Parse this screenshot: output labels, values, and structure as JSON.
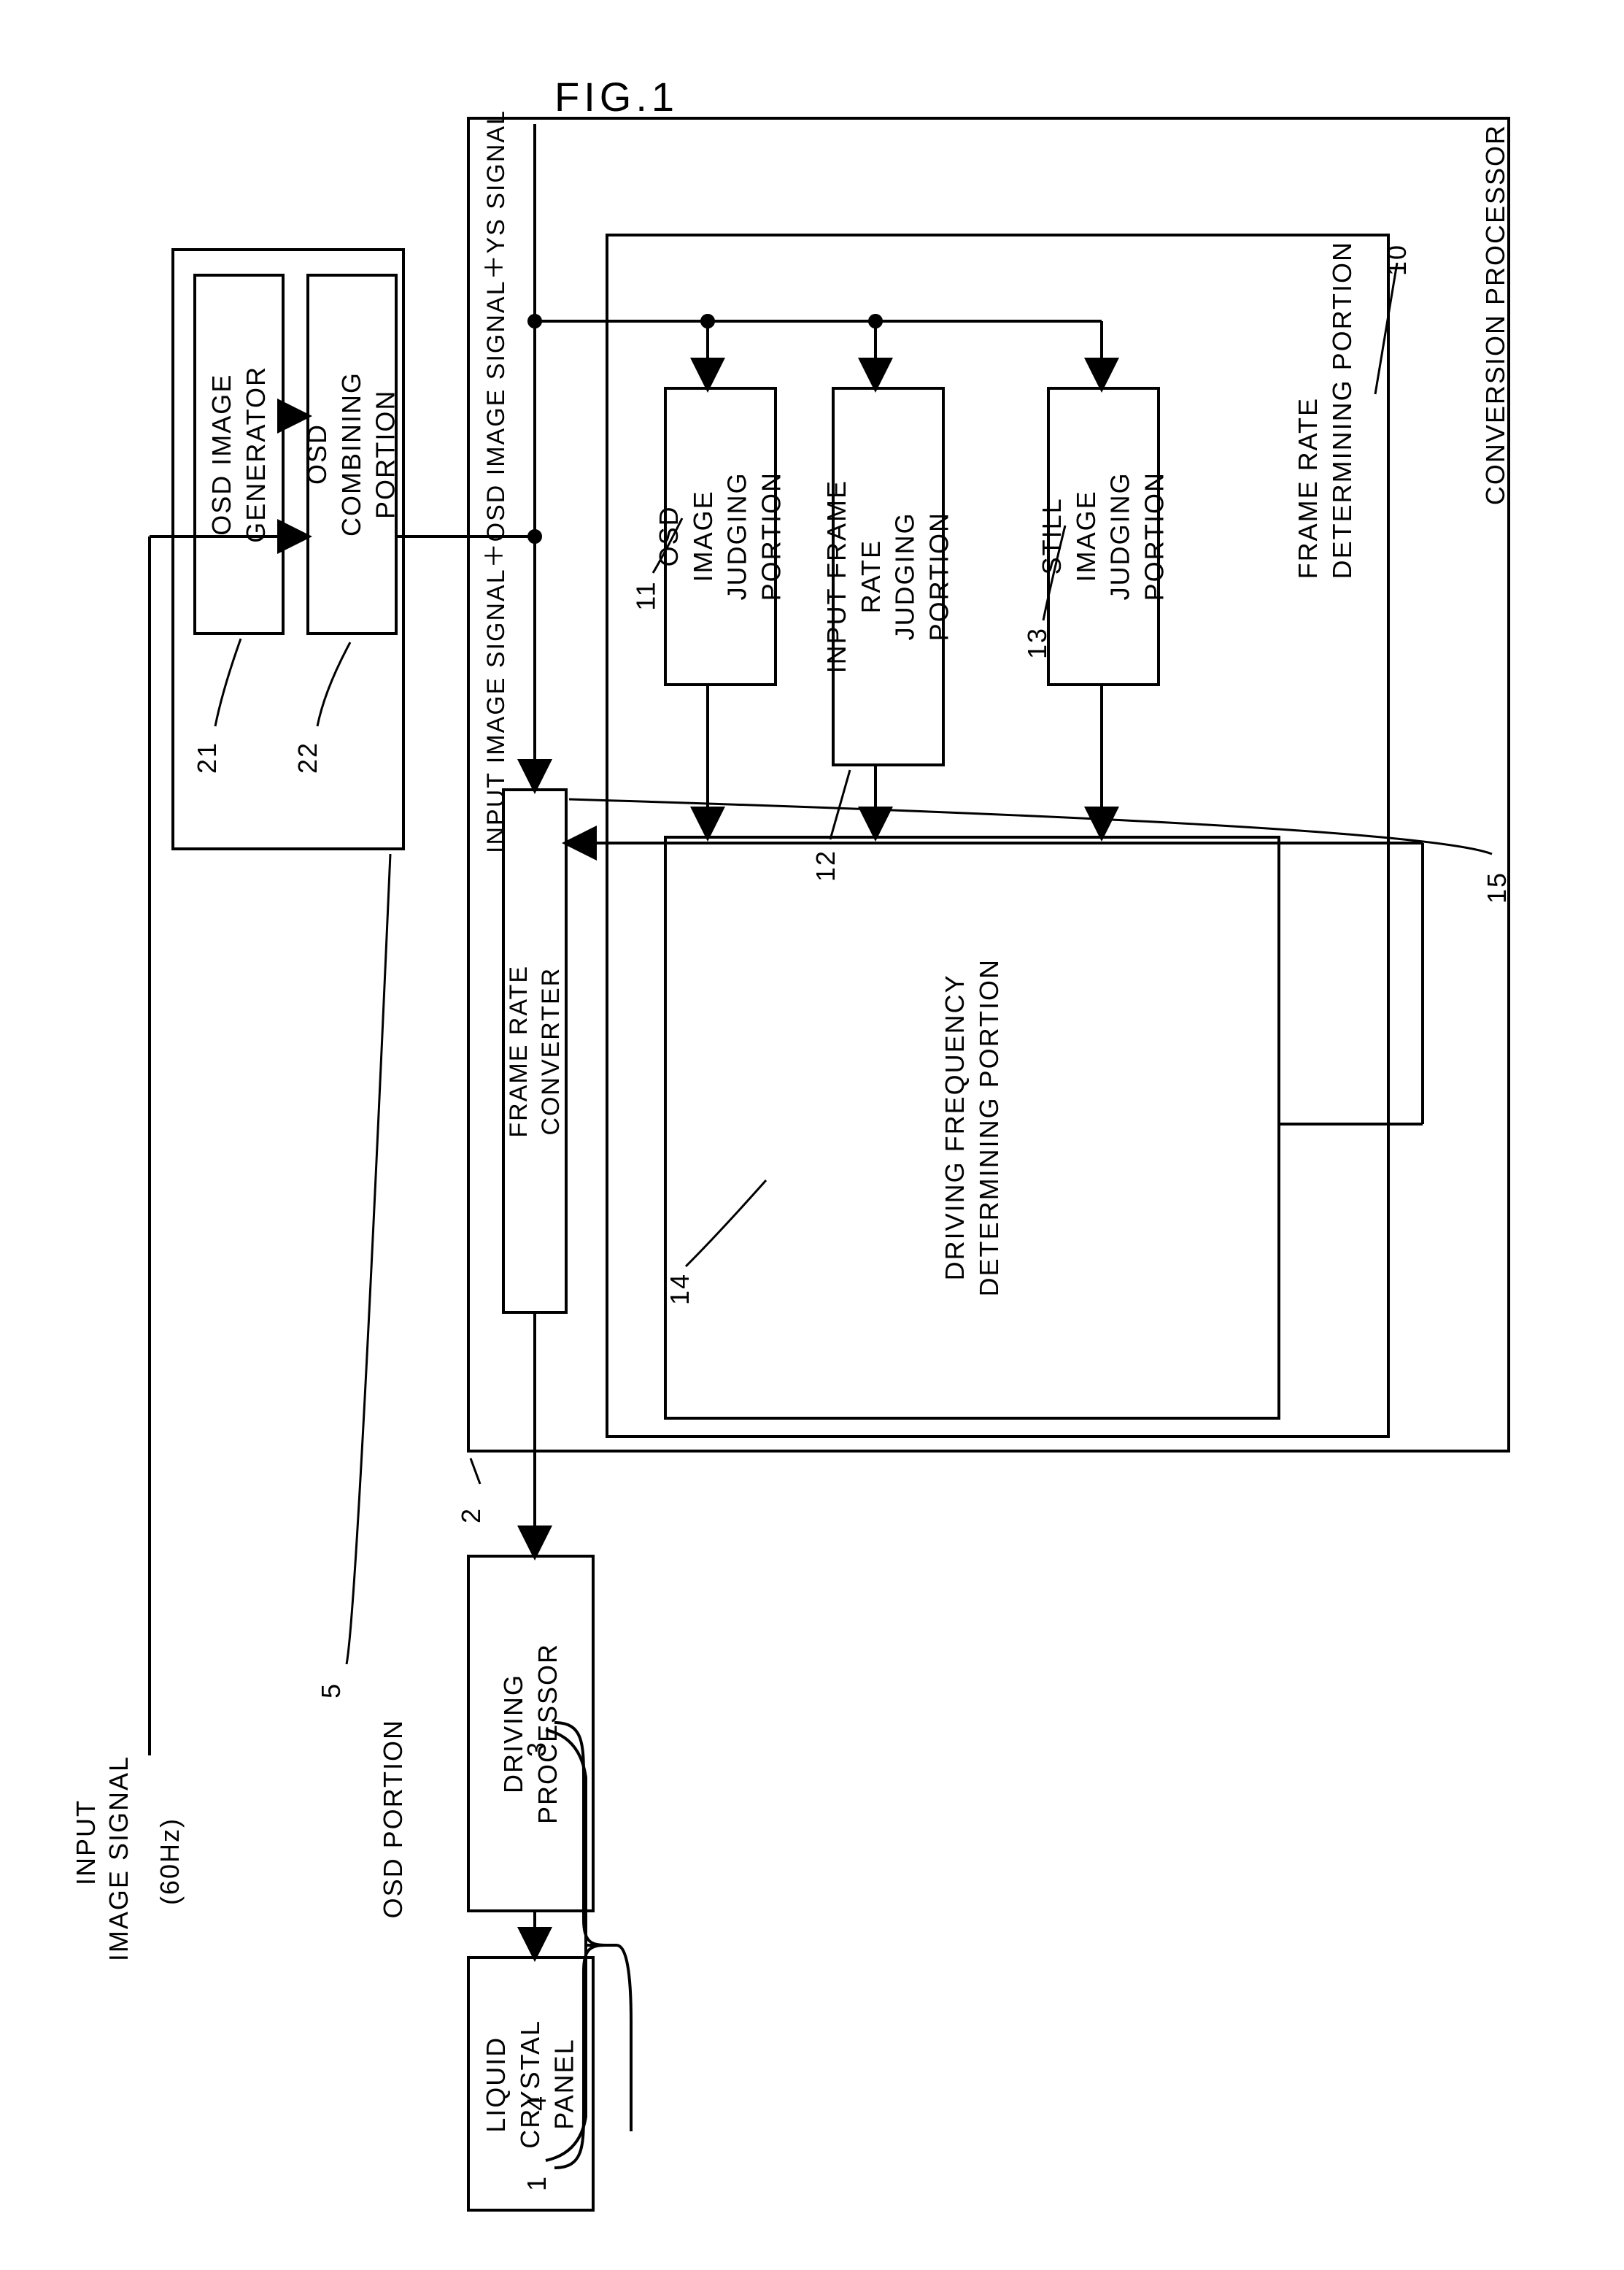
{
  "figure_title": "FIG.1",
  "input_label_1": "INPUT",
  "input_label_2": "IMAGE SIGNAL",
  "input_freq": "(60Hz)",
  "osd_image_generator": "OSD IMAGE\nGENERATOR",
  "osd_combining": "OSD\nCOMBINING\nPORTION",
  "osd_portion": "OSD PORTION",
  "signal_line": "INPUT IMAGE SIGNAL＋OSD IMAGE SIGNAL＋YS SIGNAL",
  "osd_judging": "OSD\nIMAGE\nJUDGING\nPORTION",
  "input_frame_rate": "INPUT FRAME\nRATE\nJUDGING\nPORTION",
  "still_image": "STILL\nIMAGE\nJUDGING\nPORTION",
  "driving_freq_det": "DRIVING FREQUENCY\nDETERMINING PORTION",
  "frame_rate_det": "FRAME RATE\nDETERMINING PORTION",
  "frame_rate_conv": "FRAME RATE\nCONVERTER",
  "conversion_processor": "CONVERSION PROCESSOR",
  "driving_processor": "DRIVING\nPROCESSOR",
  "liquid_crystal": "LIQUID\nCRYSTAL\nPANEL",
  "ref_1": "1",
  "ref_2": "2",
  "ref_3": "3",
  "ref_4": "4",
  "ref_5": "5",
  "ref_10": "10",
  "ref_11": "11",
  "ref_12": "12",
  "ref_13": "13",
  "ref_14": "14",
  "ref_15": "15",
  "ref_21": "21",
  "ref_22": "22",
  "stroke": "#000000",
  "stroke_width": 4
}
